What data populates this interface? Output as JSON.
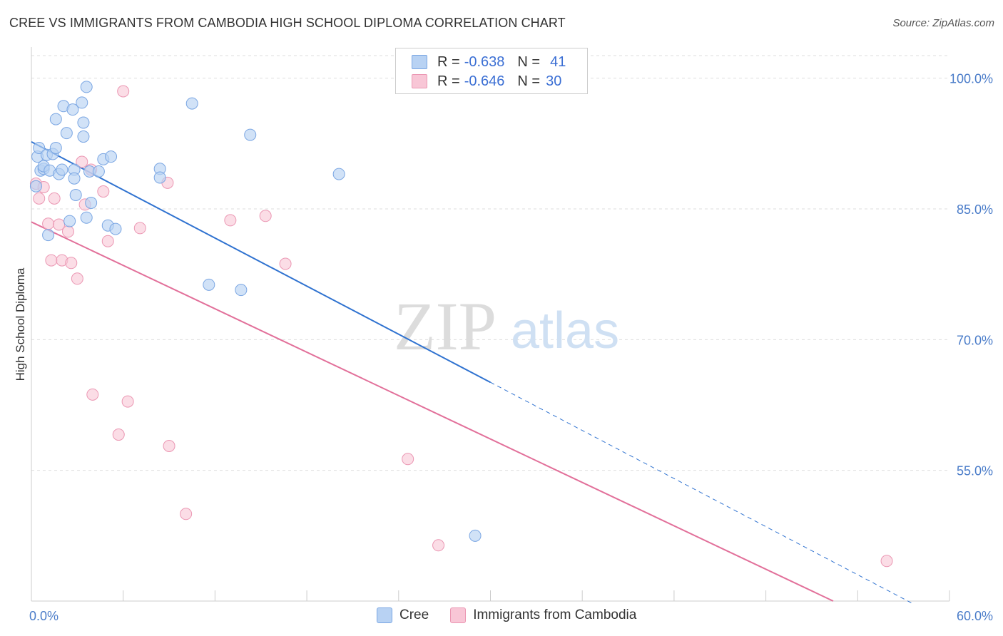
{
  "title": "CREE VS IMMIGRANTS FROM CAMBODIA HIGH SCHOOL DIPLOMA CORRELATION CHART",
  "source": "Source: ZipAtlas.com",
  "watermark": {
    "zip": "ZIP",
    "atlas": "atlas"
  },
  "legend": [
    {
      "r_label": "R =",
      "r_value": "-0.638",
      "n_label": "N =",
      "n_value": "41"
    },
    {
      "r_label": "R =",
      "r_value": "-0.646",
      "n_label": "N =",
      "n_value": "30"
    }
  ],
  "colors": {
    "cree_fill": "#b8d2f3",
    "cree_stroke": "#7aa6e3",
    "cree_line": "#2f72d0",
    "camb_fill": "#f8c6d6",
    "camb_stroke": "#eb97b3",
    "camb_line": "#e2709a",
    "tick_text": "#4a7cc9",
    "grid": "#dddddd"
  },
  "chart_data": {
    "type": "scatter",
    "title": "CREE VS IMMIGRANTS FROM CAMBODIA HIGH SCHOOL DIPLOMA CORRELATION CHART",
    "xlabel": "",
    "ylabel": "High School Diploma",
    "xlim": [
      0,
      60
    ],
    "ylim": [
      40,
      103
    ],
    "x_ticks_labels": [
      "0.0%",
      "60.0%"
    ],
    "y_ticks": [
      100,
      85,
      70,
      55
    ],
    "y_ticks_labels": [
      "100.0%",
      "85.0%",
      "70.0%",
      "55.0%"
    ],
    "series": [
      {
        "name": "Cree",
        "r": -0.638,
        "n": 41,
        "trend": {
          "x0": 0,
          "y0": 92.7,
          "x1": 30,
          "y1": 65.1,
          "dashed_to_x": 57.5,
          "dashed_to_y": 39.8
        },
        "points": [
          [
            0.3,
            87.6
          ],
          [
            0.4,
            91.0
          ],
          [
            0.5,
            92.0
          ],
          [
            0.6,
            89.4
          ],
          [
            0.8,
            89.6
          ],
          [
            0.8,
            89.9
          ],
          [
            1.0,
            91.2
          ],
          [
            1.1,
            82.0
          ],
          [
            1.2,
            89.4
          ],
          [
            1.4,
            91.3
          ],
          [
            1.6,
            92.0
          ],
          [
            1.6,
            95.3
          ],
          [
            1.8,
            89.0
          ],
          [
            2.0,
            89.5
          ],
          [
            2.1,
            96.8
          ],
          [
            2.3,
            93.7
          ],
          [
            2.5,
            83.6
          ],
          [
            2.7,
            96.4
          ],
          [
            2.8,
            89.5
          ],
          [
            2.8,
            88.5
          ],
          [
            2.9,
            86.6
          ],
          [
            3.3,
            97.2
          ],
          [
            3.4,
            94.9
          ],
          [
            3.4,
            93.3
          ],
          [
            3.6,
            99.0
          ],
          [
            3.6,
            84.0
          ],
          [
            3.8,
            89.3
          ],
          [
            3.9,
            85.7
          ],
          [
            4.4,
            89.3
          ],
          [
            4.7,
            90.7
          ],
          [
            5.0,
            83.1
          ],
          [
            5.2,
            91.0
          ],
          [
            5.5,
            82.7
          ],
          [
            8.4,
            89.6
          ],
          [
            8.4,
            88.6
          ],
          [
            10.5,
            97.1
          ],
          [
            11.6,
            76.3
          ],
          [
            13.7,
            75.7
          ],
          [
            14.3,
            93.5
          ],
          [
            20.1,
            89.0
          ],
          [
            29.0,
            47.5
          ]
        ]
      },
      {
        "name": "Immigrants from Cambodia",
        "r": -0.646,
        "n": 30,
        "trend": {
          "x0": 0,
          "y0": 83.5,
          "x1": 52.4,
          "y1": 40.0
        },
        "points": [
          [
            0.3,
            87.9
          ],
          [
            0.5,
            86.2
          ],
          [
            0.8,
            87.5
          ],
          [
            1.1,
            83.3
          ],
          [
            1.3,
            79.1
          ],
          [
            1.5,
            86.2
          ],
          [
            1.8,
            83.2
          ],
          [
            2.0,
            79.1
          ],
          [
            2.4,
            82.4
          ],
          [
            2.6,
            78.8
          ],
          [
            3.0,
            77.0
          ],
          [
            3.3,
            90.4
          ],
          [
            3.5,
            85.5
          ],
          [
            3.9,
            89.5
          ],
          [
            4.0,
            63.7
          ],
          [
            4.7,
            87.0
          ],
          [
            5.0,
            81.3
          ],
          [
            5.7,
            59.1
          ],
          [
            6.0,
            98.5
          ],
          [
            6.3,
            62.9
          ],
          [
            7.1,
            82.8
          ],
          [
            8.9,
            88.0
          ],
          [
            9.0,
            57.8
          ],
          [
            10.1,
            50.0
          ],
          [
            13.0,
            83.7
          ],
          [
            15.3,
            84.2
          ],
          [
            16.6,
            78.7
          ],
          [
            24.6,
            56.3
          ],
          [
            26.6,
            46.4
          ],
          [
            55.9,
            44.6
          ]
        ]
      }
    ]
  }
}
